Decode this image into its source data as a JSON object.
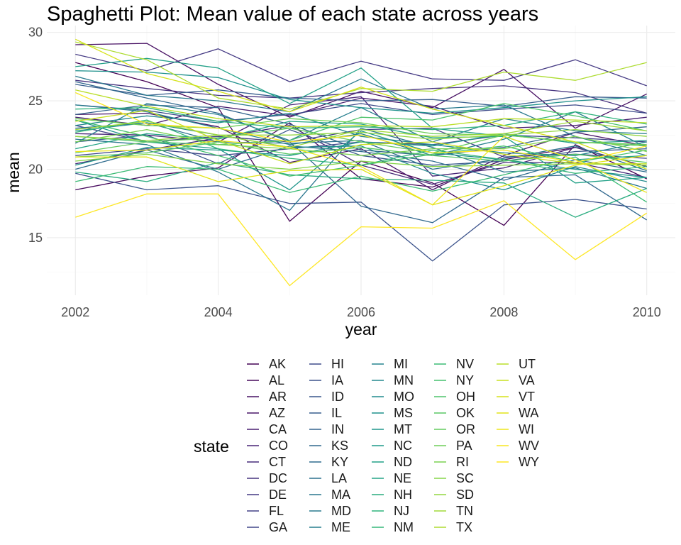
{
  "chart_data": {
    "type": "line",
    "title": "Spaghetti Plot: Mean value of each state across years",
    "xlabel": "year",
    "ylabel": "mean",
    "xlim": [
      2001.6,
      2010.4
    ],
    "ylim": [
      10.8,
      30.5
    ],
    "x_ticks": [
      2002,
      2004,
      2006,
      2008,
      2010
    ],
    "x_tick_labels": [
      "2002",
      "2004",
      "2006",
      "2008",
      "2010"
    ],
    "y_ticks": [
      15,
      20,
      25,
      30
    ],
    "y_tick_labels": [
      "15",
      "20",
      "25",
      "30"
    ],
    "grid": true,
    "legend": {
      "title": "state",
      "position": "bottom",
      "columns": 5
    },
    "x": [
      2002,
      2003,
      2004,
      2005,
      2006,
      2007,
      2008,
      2009,
      2010
    ],
    "series": [
      {
        "name": "AK",
        "color": "#440154",
        "values": [
          27.8,
          26.4,
          24.5,
          16.2,
          20.6,
          19.0,
          15.9,
          21.8,
          19.3
        ]
      },
      {
        "name": "AL",
        "color": "#46085C",
        "values": [
          18.5,
          19.5,
          20.1,
          23.4,
          19.3,
          18.7,
          20.7,
          21.6,
          20.2
        ]
      },
      {
        "name": "AR",
        "color": "#471063",
        "values": [
          29.1,
          29.2,
          26.2,
          23.8,
          25.7,
          24.5,
          27.3,
          23.0,
          25.5
        ]
      },
      {
        "name": "AZ",
        "color": "#481769",
        "values": [
          24.0,
          24.1,
          23.1,
          20.5,
          21.5,
          18.5,
          21.0,
          22.7,
          21.7
        ]
      },
      {
        "name": "CA",
        "color": "#481F70",
        "values": [
          23.8,
          23.2,
          24.6,
          23.9,
          25.2,
          24.6,
          23.0,
          23.2,
          23.8
        ]
      },
      {
        "name": "CO",
        "color": "#482576",
        "values": [
          22.6,
          22.5,
          22.0,
          24.7,
          25.3,
          19.5,
          20.1,
          21.6,
          20.2
        ]
      },
      {
        "name": "CT",
        "color": "#472C7A",
        "values": [
          20.4,
          21.4,
          22.3,
          23.2,
          20.3,
          18.9,
          20.5,
          20.5,
          19.4
        ]
      },
      {
        "name": "DC",
        "color": "#46337F",
        "values": [
          26.5,
          25.9,
          25.4,
          25.2,
          25.6,
          25.9,
          26.1,
          25.6,
          24.1
        ]
      },
      {
        "name": "DE",
        "color": "#443983",
        "values": [
          28.4,
          27.2,
          28.8,
          26.4,
          27.9,
          26.6,
          26.5,
          28.0,
          26.1
        ]
      },
      {
        "name": "FL",
        "color": "#424086",
        "values": [
          23.2,
          22.0,
          22.4,
          22.0,
          22.9,
          23.0,
          20.9,
          21.1,
          20.8
        ]
      },
      {
        "name": "GA",
        "color": "#404688",
        "values": [
          21.0,
          21.5,
          21.0,
          21.5,
          22.0,
          21.8,
          22.5,
          22.3,
          22.0
        ]
      },
      {
        "name": "HI",
        "color": "#3E4C8A",
        "values": [
          24.7,
          24.3,
          23.5,
          24.0,
          24.8,
          24.0,
          24.4,
          24.7,
          24.1
        ]
      },
      {
        "name": "IA",
        "color": "#3B528B",
        "values": [
          19.7,
          18.5,
          18.8,
          17.5,
          17.6,
          13.3,
          17.4,
          17.8,
          17.1
        ]
      },
      {
        "name": "ID",
        "color": "#39578C",
        "values": [
          22.0,
          22.5,
          20.4,
          22.9,
          21.0,
          20.3,
          20.6,
          21.3,
          21.5
        ]
      },
      {
        "name": "IL",
        "color": "#365D8D",
        "values": [
          26.2,
          25.4,
          25.8,
          25.2,
          25.0,
          25.1,
          24.6,
          25.3,
          25.2
        ]
      },
      {
        "name": "IN",
        "color": "#33638D",
        "values": [
          24.0,
          24.7,
          24.5,
          23.3,
          21.4,
          21.0,
          21.6,
          22.7,
          23.1
        ]
      },
      {
        "name": "KS",
        "color": "#31688E",
        "values": [
          26.4,
          25.2,
          24.1,
          22.0,
          17.3,
          16.1,
          19.4,
          19.6,
          16.3
        ]
      },
      {
        "name": "KY",
        "color": "#2F6C8E",
        "values": [
          20.0,
          21.4,
          20.0,
          21.7,
          21.3,
          20.6,
          19.2,
          20.7,
          19.8
        ]
      },
      {
        "name": "LA",
        "color": "#2C718E",
        "values": [
          23.0,
          23.4,
          22.0,
          21.9,
          22.1,
          20.0,
          20.8,
          21.7,
          19.9
        ]
      },
      {
        "name": "MA",
        "color": "#2A768E",
        "values": [
          22.2,
          21.8,
          19.8,
          17.0,
          23.0,
          21.6,
          19.8,
          20.1,
          18.6
        ]
      },
      {
        "name": "MD",
        "color": "#297A8E",
        "values": [
          26.8,
          25.4,
          25.0,
          24.2,
          26.6,
          24.4,
          24.7,
          22.4,
          21.0
        ]
      },
      {
        "name": "ME",
        "color": "#277F8E",
        "values": [
          21.9,
          24.8,
          24.0,
          22.1,
          24.5,
          22.0,
          23.7,
          22.8,
          22.6
        ]
      },
      {
        "name": "MI",
        "color": "#25838E",
        "values": [
          24.7,
          24.2,
          23.0,
          21.8,
          22.6,
          21.0,
          22.2,
          24.2,
          21.6
        ]
      },
      {
        "name": "MN",
        "color": "#23888E",
        "values": [
          23.2,
          23.9,
          23.4,
          24.1,
          22.4,
          21.8,
          21.2,
          21.0,
          22.0
        ]
      },
      {
        "name": "MO",
        "color": "#218C8D",
        "values": [
          22.8,
          23.4,
          22.5,
          21.6,
          21.7,
          19.7,
          18.5,
          20.2,
          19.1
        ]
      },
      {
        "name": "MS",
        "color": "#1F918C",
        "values": [
          27.2,
          27.1,
          26.7,
          25.1,
          24.5,
          24.1,
          24.5,
          25.0,
          25.3
        ]
      },
      {
        "name": "MT",
        "color": "#1F958B",
        "values": [
          23.6,
          22.0,
          21.5,
          18.5,
          22.8,
          21.2,
          20.7,
          20.0,
          19.4
        ]
      },
      {
        "name": "NC",
        "color": "#1F9A8A",
        "values": [
          20.3,
          21.6,
          21.4,
          21.0,
          22.0,
          21.7,
          22.6,
          21.9,
          22.1
        ]
      },
      {
        "name": "ND",
        "color": "#21A087",
        "values": [
          27.5,
          28.1,
          27.4,
          24.8,
          27.4,
          23.0,
          22.4,
          19.0,
          19.4
        ]
      },
      {
        "name": "NE",
        "color": "#23A485",
        "values": [
          21.5,
          22.6,
          22.2,
          23.5,
          23.3,
          22.3,
          22.4,
          20.7,
          21.0
        ]
      },
      {
        "name": "NH",
        "color": "#29AC7F",
        "values": [
          19.8,
          19.1,
          20.5,
          19.6,
          19.3,
          19.2,
          19.0,
          16.5,
          18.6
        ]
      },
      {
        "name": "NJ",
        "color": "#2EB37C",
        "values": [
          24.4,
          24.5,
          23.5,
          23.0,
          23.1,
          22.9,
          23.2,
          24.2,
          23.3
        ]
      },
      {
        "name": "NM",
        "color": "#35B779",
        "values": [
          22.7,
          23.6,
          21.5,
          20.8,
          20.3,
          21.4,
          20.7,
          19.7,
          20.2
        ]
      },
      {
        "name": "NV",
        "color": "#3BBB75",
        "values": [
          19.1,
          20.2,
          20.0,
          18.3,
          19.5,
          18.4,
          19.6,
          20.9,
          17.6
        ]
      },
      {
        "name": "NY",
        "color": "#45C06F",
        "values": [
          23.6,
          22.4,
          21.0,
          19.5,
          20.3,
          21.1,
          21.7,
          20.5,
          21.4
        ]
      },
      {
        "name": "OH",
        "color": "#4EC36B",
        "values": [
          22.4,
          22.0,
          21.8,
          22.1,
          23.8,
          23.6,
          24.8,
          23.9,
          22.8
        ]
      },
      {
        "name": "OK",
        "color": "#58C765",
        "values": [
          20.9,
          21.2,
          22.0,
          21.1,
          21.6,
          21.0,
          20.6,
          21.1,
          20.5
        ]
      },
      {
        "name": "OR",
        "color": "#64CB5F",
        "values": [
          21.2,
          22.0,
          22.3,
          23.0,
          22.0,
          21.2,
          22.5,
          22.0,
          21.8
        ]
      },
      {
        "name": "PA",
        "color": "#6ECE58",
        "values": [
          23.7,
          23.2,
          23.0,
          23.7,
          23.4,
          22.6,
          22.5,
          22.0,
          21.7
        ]
      },
      {
        "name": "RI",
        "color": "#7AD151",
        "values": [
          22.0,
          22.9,
          21.8,
          21.5,
          21.0,
          21.5,
          21.5,
          22.4,
          21.3
        ]
      },
      {
        "name": "SC",
        "color": "#86D549",
        "values": [
          20.6,
          21.1,
          20.4,
          20.0,
          20.6,
          20.2,
          20.3,
          20.4,
          20.3
        ]
      },
      {
        "name": "SD",
        "color": "#93D741",
        "values": [
          22.4,
          22.1,
          22.5,
          22.5,
          22.7,
          22.2,
          22.5,
          22.9,
          22.4
        ]
      },
      {
        "name": "TN",
        "color": "#A0DA39",
        "values": [
          22.9,
          23.5,
          22.5,
          21.6,
          22.9,
          22.4,
          22.6,
          23.5,
          22.8
        ]
      },
      {
        "name": "TX",
        "color": "#ADDC30",
        "values": [
          29.3,
          28.0,
          25.2,
          24.4,
          25.9,
          25.7,
          27.1,
          26.5,
          27.8
        ]
      },
      {
        "name": "UT",
        "color": "#BADE28",
        "values": [
          25.8,
          24.6,
          23.7,
          23.1,
          23.2,
          23.1,
          23.7,
          23.6,
          23.4
        ]
      },
      {
        "name": "VA",
        "color": "#C8E020",
        "values": [
          23.5,
          24.3,
          22.1,
          20.4,
          21.8,
          22.0,
          21.1,
          20.4,
          20.4
        ]
      },
      {
        "name": "VT",
        "color": "#D5E21A",
        "values": [
          29.5,
          27.0,
          25.7,
          24.2,
          26.0,
          24.4,
          23.2,
          22.0,
          20.0
        ]
      },
      {
        "name": "WA",
        "color": "#E2E418",
        "values": [
          20.9,
          20.9,
          19.1,
          19.9,
          20.0,
          17.4,
          18.8,
          20.3,
          21.0
        ]
      },
      {
        "name": "WI",
        "color": "#EEE51C",
        "values": [
          21.3,
          21.4,
          22.1,
          21.6,
          20.2,
          17.4,
          22.4,
          20.7,
          18.3
        ]
      },
      {
        "name": "WV",
        "color": "#F7E620",
        "values": [
          25.6,
          23.3,
          23.0,
          22.0,
          22.5,
          21.2,
          21.4,
          20.5,
          21.7
        ]
      },
      {
        "name": "WY",
        "color": "#FDE725",
        "values": [
          16.5,
          18.2,
          18.2,
          11.5,
          15.8,
          15.7,
          17.7,
          13.4,
          16.8
        ]
      }
    ]
  }
}
